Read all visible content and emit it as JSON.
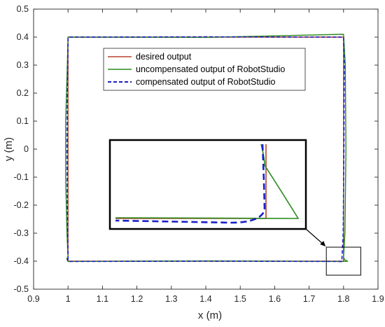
{
  "chart_data": {
    "type": "line",
    "title": "",
    "xlabel": "x (m)",
    "ylabel": "y (m)",
    "xlim": [
      0.9,
      1.9
    ],
    "ylim": [
      -0.5,
      0.5
    ],
    "xticks": [
      "0.9",
      "1",
      "1.1",
      "1.2",
      "1.3",
      "1.4",
      "1.5",
      "1.6",
      "1.7",
      "1.8",
      "1.9"
    ],
    "yticks": [
      "-0.5",
      "-0.4",
      "-0.3",
      "-0.2",
      "-0.1",
      "0",
      "0.1",
      "0.2",
      "0.3",
      "0.4",
      "0.5"
    ],
    "grid": false,
    "legend_position": "top-center",
    "series": [
      {
        "name": "desired output",
        "color": "#b5442b",
        "style": "solid",
        "x": [
          1.0,
          1.0,
          1.8,
          1.8,
          1.0
        ],
        "y": [
          -0.4,
          0.4,
          0.4,
          -0.4,
          -0.4
        ]
      },
      {
        "name": "uncompensated output of RobotStudio",
        "color": "#2a8a1f",
        "style": "solid",
        "x": [
          1.0,
          0.997,
          0.993,
          0.993,
          0.998,
          1.0,
          1.4,
          1.8,
          1.805,
          1.807,
          1.804,
          1.8,
          1.803,
          1.812,
          1.8,
          1.4,
          1.0,
          0.996,
          1.0
        ],
        "y": [
          -0.39,
          -0.3,
          -0.1,
          0.1,
          0.3,
          0.4,
          0.399,
          0.41,
          0.3,
          0.0,
          -0.3,
          -0.385,
          -0.395,
          -0.4,
          -0.401,
          -0.399,
          -0.401,
          -0.39,
          -0.39
        ]
      },
      {
        "name": "compensated output of RobotStudio",
        "color": "#1a20c8",
        "style": "dashed",
        "x": [
          1.0,
          0.998,
          0.997,
          0.998,
          1.0,
          1.4,
          1.8,
          1.802,
          1.801,
          1.799,
          1.795,
          1.4,
          1.0,
          0.998,
          1.0
        ],
        "y": [
          -0.395,
          -0.2,
          0.0,
          0.2,
          0.4,
          0.401,
          0.4,
          0.3,
          0.0,
          -0.3,
          -0.401,
          -0.4,
          -0.401,
          -0.395,
          -0.395
        ]
      }
    ],
    "annotations": [
      {
        "type": "zoom-box",
        "xrange": [
          1.75,
          1.85
        ],
        "yrange": [
          -0.45,
          -0.35
        ]
      }
    ]
  }
}
